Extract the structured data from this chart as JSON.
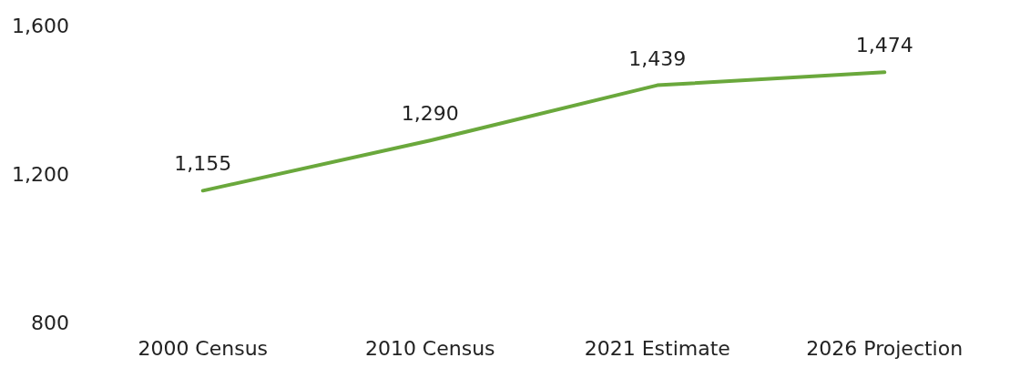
{
  "chart_data": {
    "type": "line",
    "categories": [
      "2000 Census",
      "2010 Census",
      "2021 Estimate",
      "2026 Projection"
    ],
    "series": [
      {
        "color": "#6aa83c",
        "values": [
          1155,
          1290,
          1439,
          1474
        ],
        "value_labels": [
          "1,155",
          "1,290",
          "1,439",
          "1,474"
        ]
      }
    ],
    "ylim": [
      800,
      1600
    ],
    "yticks": [
      {
        "value": 800,
        "label": "800"
      },
      {
        "value": 1200,
        "label": "1,200"
      },
      {
        "value": 1600,
        "label": "1,600"
      }
    ],
    "marker": "none"
  }
}
